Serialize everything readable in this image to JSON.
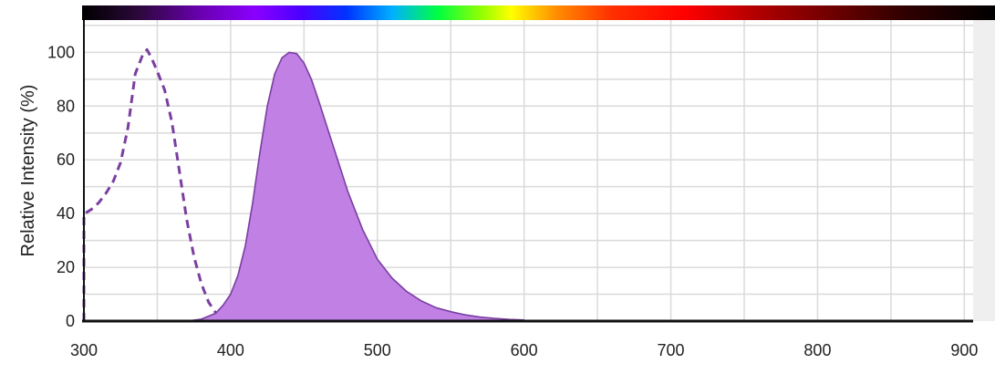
{
  "chart_data": {
    "type": "area",
    "title": "",
    "xlabel": "",
    "ylabel": "Relative Intensity (%)",
    "xlim": [
      300,
      906
    ],
    "ylim": [
      0,
      112
    ],
    "x_ticks": [
      300,
      400,
      500,
      600,
      700,
      800,
      900
    ],
    "y_ticks": [
      0,
      20,
      40,
      60,
      80,
      100
    ],
    "grid": true,
    "spectrum_bar": true,
    "spectrum_range_nm": [
      300,
      906
    ],
    "series": [
      {
        "style": "dashed",
        "fill": false,
        "color": "#7a3fa0",
        "x": [
          300,
          302,
          305,
          310,
          315,
          320,
          325,
          330,
          335,
          340,
          343,
          346,
          350,
          355,
          360,
          365,
          370,
          375,
          380,
          385,
          390,
          394,
          397,
          399,
          400,
          401,
          350,
          300
        ],
        "y": [
          40,
          40.5,
          41.5,
          44,
          47.5,
          52,
          59,
          72,
          92,
          99,
          101,
          98,
          93,
          86,
          74,
          56,
          38,
          24,
          14,
          7,
          3,
          1.5,
          2,
          2.5,
          1.5,
          0,
          0,
          0
        ]
      },
      {
        "style": "solid",
        "fill": true,
        "color": "#7a3fa0",
        "fill_color": "#c080e4",
        "x": [
          370,
          380,
          390,
          395,
          400,
          405,
          410,
          415,
          420,
          425,
          430,
          435,
          440,
          445,
          450,
          455,
          460,
          470,
          480,
          490,
          500,
          510,
          520,
          530,
          540,
          550,
          560,
          570,
          580,
          590,
          600
        ],
        "y": [
          0,
          0.7,
          3,
          6,
          10,
          17,
          28,
          44,
          63,
          80,
          92,
          98,
          100,
          99.5,
          96,
          90,
          82,
          65,
          48,
          34,
          23,
          16,
          11,
          7.5,
          5,
          3.5,
          2.3,
          1.5,
          1,
          0.6,
          0.4
        ]
      }
    ]
  }
}
